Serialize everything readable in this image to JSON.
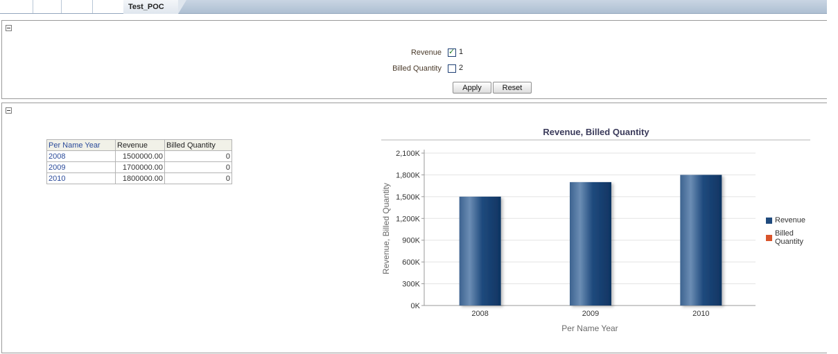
{
  "tabs": {
    "active_label": "Test_POC"
  },
  "prompts": {
    "revenue_label": "Revenue",
    "revenue_value": "1",
    "billed_label": "Billed Quantity",
    "billed_value": "2",
    "apply_label": "Apply",
    "reset_label": "Reset"
  },
  "table": {
    "headers": [
      "Per Name Year",
      "Revenue",
      "Billed Quantity"
    ],
    "rows": [
      {
        "year": "2008",
        "revenue": "1500000.00",
        "billed": "0"
      },
      {
        "year": "2009",
        "revenue": "1700000.00",
        "billed": "0"
      },
      {
        "year": "2010",
        "revenue": "1800000.00",
        "billed": "0"
      }
    ]
  },
  "chart_data": {
    "type": "bar",
    "title": "Revenue, Billed Quantity",
    "xlabel": "Per Name Year",
    "ylabel": "Revenue, Billed Quantity",
    "categories": [
      "2008",
      "2009",
      "2010"
    ],
    "series": [
      {
        "name": "Revenue",
        "values": [
          1500000,
          1700000,
          1800000
        ],
        "color": "#1f4a7d"
      },
      {
        "name": "Billed Quantity",
        "values": [
          0,
          0,
          0
        ],
        "color": "#d9542b"
      }
    ],
    "ylim": [
      0,
      2100000
    ],
    "yticks": [
      "0K",
      "300K",
      "600K",
      "900K",
      "1,200K",
      "1,500K",
      "1,800K",
      "2,100K"
    ],
    "grid": true,
    "legend_position": "right"
  }
}
